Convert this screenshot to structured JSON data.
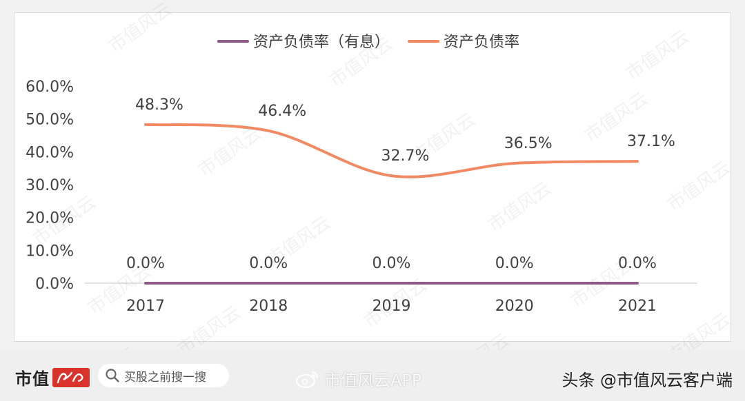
{
  "chart_data": {
    "type": "line",
    "categories": [
      "2017",
      "2018",
      "2019",
      "2020",
      "2021"
    ],
    "series": [
      {
        "name": "资产负债率（有息）",
        "values": [
          0.0,
          0.0,
          0.0,
          0.0,
          0.0
        ],
        "labels": [
          "0.0%",
          "0.0%",
          "0.0%",
          "0.0%",
          "0.0%"
        ],
        "color": "#8e5a86"
      },
      {
        "name": "资产负债率",
        "values": [
          48.3,
          46.4,
          32.7,
          36.5,
          37.1
        ],
        "labels": [
          "48.3%",
          "46.4%",
          "32.7%",
          "36.5%",
          "37.1%"
        ],
        "color": "#f08a63"
      }
    ],
    "ylim": [
      0,
      60
    ],
    "yticks": [
      "0.0%",
      "10.0%",
      "20.0%",
      "30.0%",
      "40.0%",
      "50.0%",
      "60.0%"
    ],
    "grid": false,
    "legend": "top-center",
    "smooth": true
  },
  "watermark_text": "市值风云",
  "footer": {
    "logo_text": "市值",
    "logo_mark_text": "风云",
    "search_placeholder": "买股之前搜一搜",
    "weibo_watermark": "市值风云APP",
    "source_credit": "头条 @市值风云客户端"
  },
  "colors": {
    "axis": "#d9d9d9",
    "text": "#404040",
    "brand_red": "#d9312b"
  },
  "icons": {
    "search": "search-icon",
    "weibo": "weibo-icon"
  }
}
